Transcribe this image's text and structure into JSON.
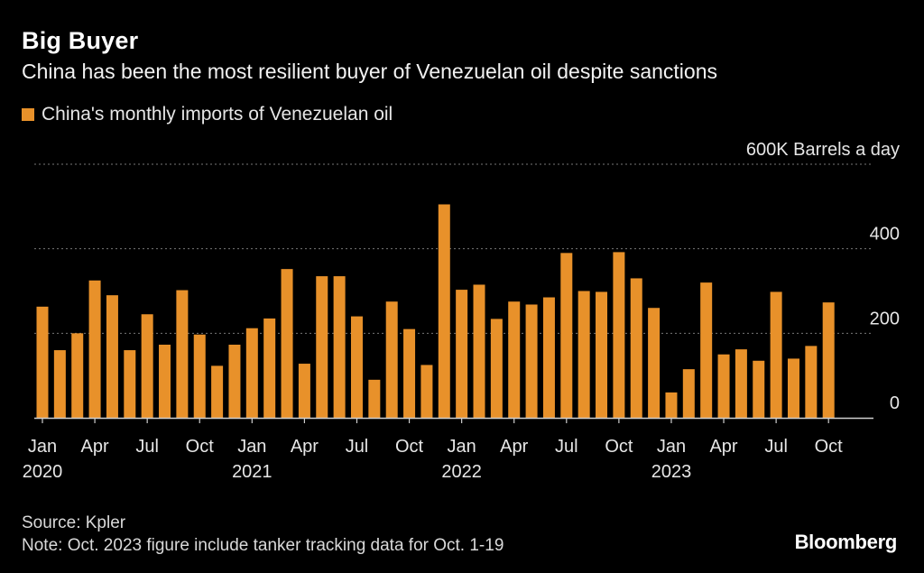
{
  "header": {
    "title": "Big Buyer",
    "subtitle": "China has been the most resilient buyer of Venezuelan oil despite sanctions"
  },
  "colors": {
    "bar": "#E8912A",
    "grid": "#777777",
    "axis": "#cfcfcf"
  },
  "chart_data": {
    "type": "bar",
    "title": "Big Buyer",
    "subtitle": "China has been the most resilient buyer of Venezuelan oil despite sanctions",
    "series": [
      {
        "name": "China's monthly imports of Venezuelan oil",
        "values": [
          263,
          160,
          200,
          325,
          290,
          160,
          245,
          173,
          302,
          197,
          123,
          173,
          212,
          235,
          352,
          128,
          335,
          335,
          240,
          90,
          275,
          210,
          125,
          505,
          303,
          315,
          234,
          275,
          268,
          285,
          390,
          300,
          298,
          392,
          330,
          260,
          60,
          115,
          320,
          150,
          162,
          135,
          298,
          140,
          170,
          273
        ]
      }
    ],
    "categories": [
      "Jan 2020",
      "Feb 2020",
      "Mar 2020",
      "Apr 2020",
      "May 2020",
      "Jun 2020",
      "Jul 2020",
      "Aug 2020",
      "Sep 2020",
      "Oct 2020",
      "Nov 2020",
      "Dec 2020",
      "Jan 2021",
      "Feb 2021",
      "Mar 2021",
      "Apr 2021",
      "May 2021",
      "Jun 2021",
      "Jul 2021",
      "Aug 2021",
      "Sep 2021",
      "Oct 2021",
      "Nov 2021",
      "Dec 2021",
      "Jan 2022",
      "Feb 2022",
      "Mar 2022",
      "Apr 2022",
      "May 2022",
      "Jun 2022",
      "Jul 2022",
      "Aug 2022",
      "Sep 2022",
      "Oct 2022",
      "Nov 2022",
      "Dec 2022",
      "Jan 2023",
      "Feb 2023",
      "Mar 2023",
      "Apr 2023",
      "May 2023",
      "Jun 2023",
      "Jul 2023",
      "Aug 2023",
      "Sep 2023",
      "Oct 2023"
    ],
    "x_ticks": [
      {
        "index": 0,
        "label": "Jan",
        "year": "2020"
      },
      {
        "index": 3,
        "label": "Apr"
      },
      {
        "index": 6,
        "label": "Jul"
      },
      {
        "index": 9,
        "label": "Oct"
      },
      {
        "index": 12,
        "label": "Jan",
        "year": "2021"
      },
      {
        "index": 15,
        "label": "Apr"
      },
      {
        "index": 18,
        "label": "Jul"
      },
      {
        "index": 21,
        "label": "Oct"
      },
      {
        "index": 24,
        "label": "Jan",
        "year": "2022"
      },
      {
        "index": 27,
        "label": "Apr"
      },
      {
        "index": 30,
        "label": "Jul"
      },
      {
        "index": 33,
        "label": "Oct"
      },
      {
        "index": 36,
        "label": "Jan",
        "year": "2023"
      },
      {
        "index": 39,
        "label": "Apr"
      },
      {
        "index": 42,
        "label": "Jul"
      },
      {
        "index": 45,
        "label": "Oct"
      }
    ],
    "y_ticks": [
      {
        "value": 600,
        "label": "600K Barrels a day"
      },
      {
        "value": 400,
        "label": "400"
      },
      {
        "value": 200,
        "label": "200"
      },
      {
        "value": 0,
        "label": "0"
      }
    ],
    "ylim": [
      0,
      600
    ],
    "grid": true,
    "legend": "top-left",
    "xlabel": "",
    "ylabel": "Barrels a day"
  },
  "footer": {
    "source": "Source: Kpler",
    "note": "Note: Oct. 2023 figure include tanker tracking data for Oct. 1-19",
    "brand": "Bloomberg"
  }
}
